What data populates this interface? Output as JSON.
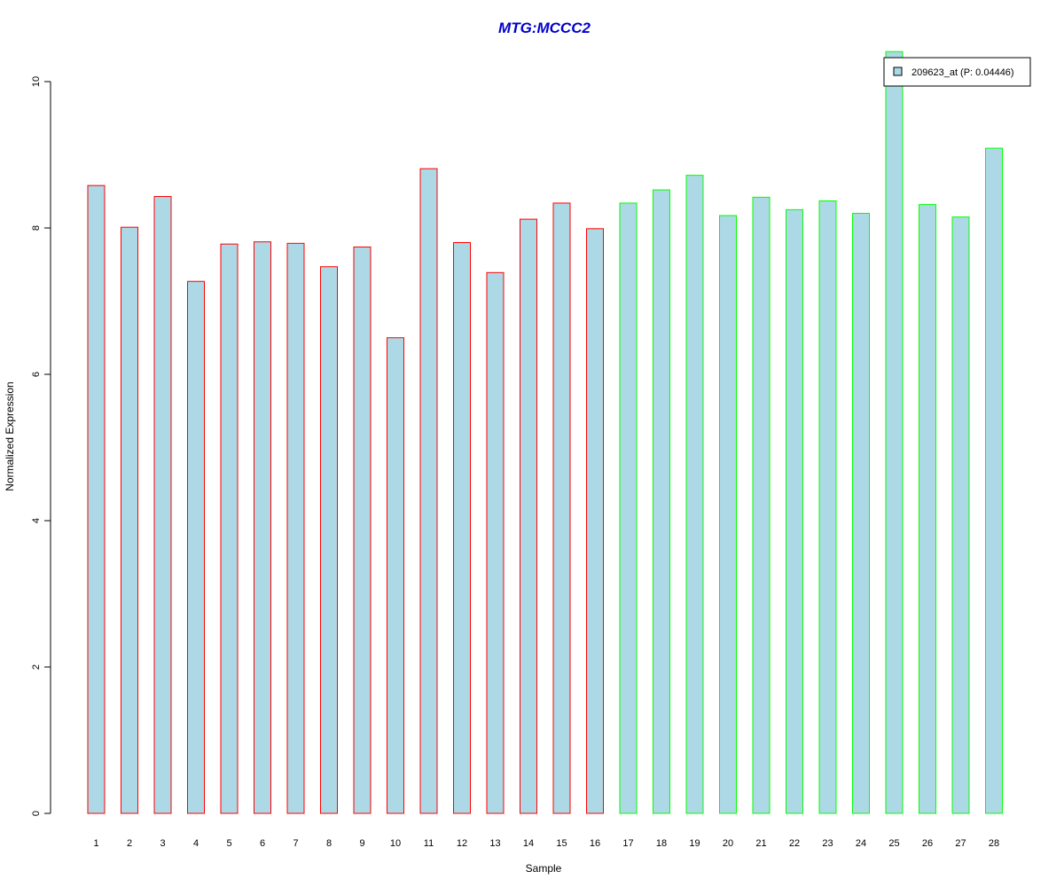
{
  "chart_data": {
    "type": "bar",
    "title": "MTG:MCCC2",
    "xlabel": "Sample",
    "ylabel": "Normalized Expression",
    "categories": [
      "1",
      "2",
      "3",
      "4",
      "5",
      "6",
      "7",
      "8",
      "9",
      "10",
      "11",
      "12",
      "13",
      "14",
      "15",
      "16",
      "17",
      "18",
      "19",
      "20",
      "21",
      "22",
      "23",
      "24",
      "25",
      "26",
      "27",
      "28"
    ],
    "values": [
      8.58,
      8.01,
      8.43,
      7.27,
      7.78,
      7.81,
      7.79,
      7.47,
      7.74,
      6.5,
      8.81,
      7.8,
      7.39,
      8.12,
      8.34,
      7.99,
      8.34,
      8.52,
      8.72,
      8.17,
      8.42,
      8.25,
      8.37,
      8.2,
      10.41,
      8.32,
      8.15,
      9.09
    ],
    "group": [
      "a",
      "a",
      "a",
      "a",
      "a",
      "a",
      "a",
      "a",
      "a",
      "a",
      "a",
      "a",
      "a",
      "a",
      "a",
      "a",
      "b",
      "b",
      "b",
      "b",
      "b",
      "b",
      "b",
      "b",
      "b",
      "b",
      "b",
      "b"
    ],
    "ylim": [
      0,
      10
    ],
    "yticks": [
      "0",
      "2",
      "4",
      "6",
      "8",
      "10"
    ],
    "grid": false,
    "legend": {
      "position": "top-right",
      "entries": [
        {
          "label": "209623_at (P: 0.04446)",
          "fill": "#add8e6"
        }
      ]
    },
    "colors": {
      "bar_fill": "#add8e6",
      "border_group_a": "#ff0000",
      "border_group_b": "#00ff00",
      "title": "#0000cd"
    }
  }
}
